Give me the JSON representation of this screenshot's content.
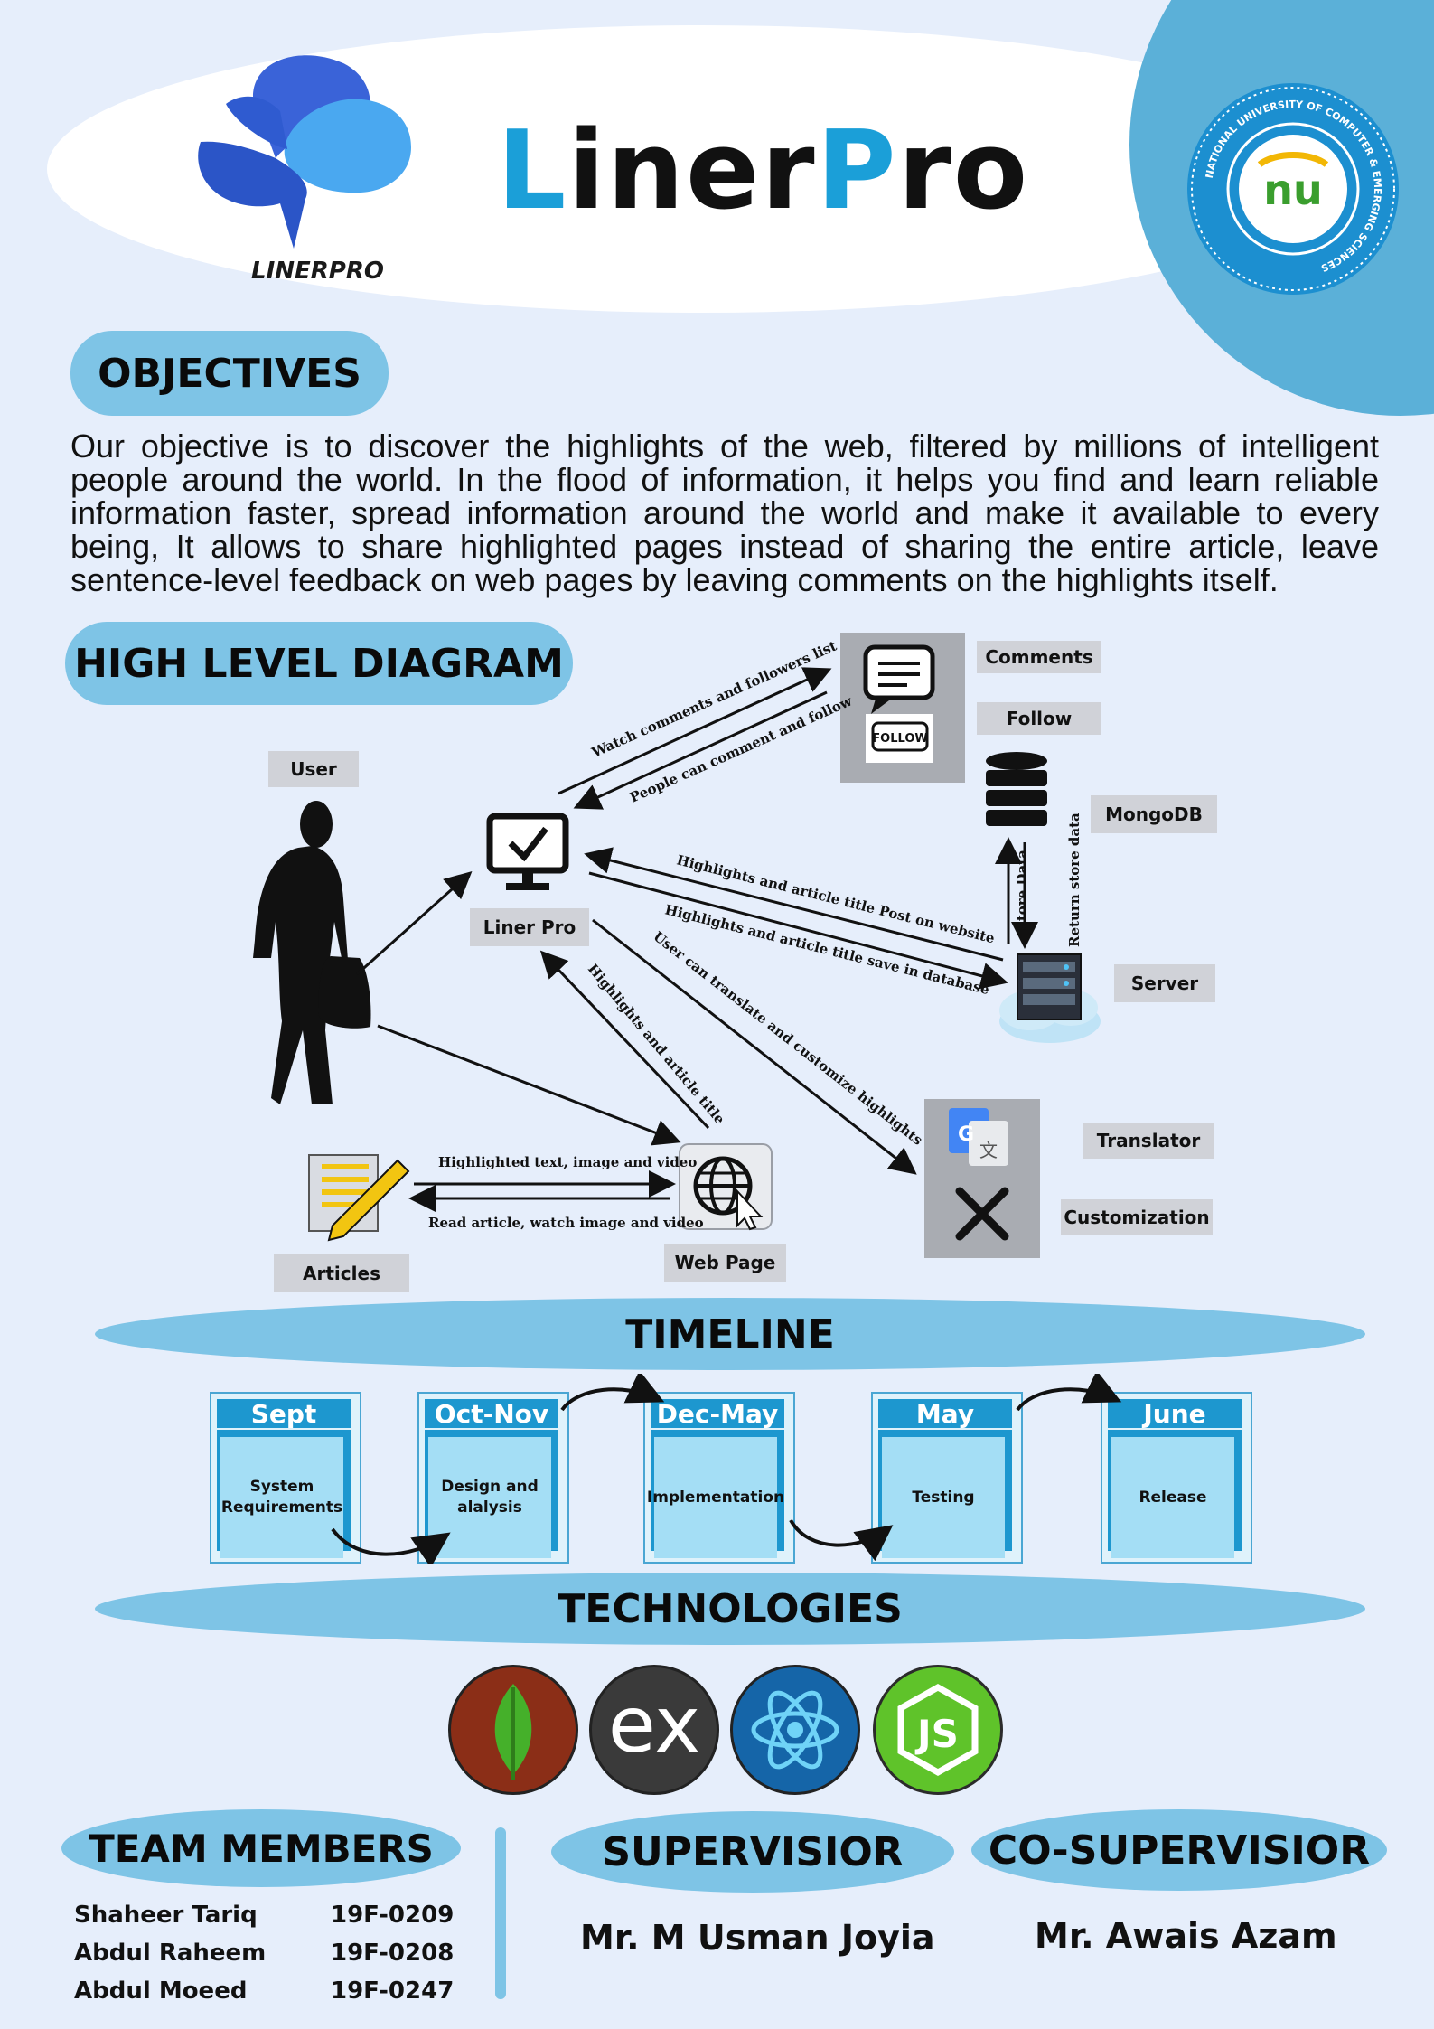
{
  "header": {
    "logo_caption": "LINERPRO",
    "title_part1": "L",
    "title_part2": "iner",
    "title_part3": "P",
    "title_part4": "ro",
    "seal_text": "NATIONAL UNIVERSITY OF COMPUTER & EMERGING SCIENCES",
    "seal_mark": "nu"
  },
  "objectives": {
    "heading": "OBJECTIVES",
    "text": "Our objective is to discover the highlights of the web, filtered by millions of intelligent people around the world. In the flood of information, it helps you find and learn reliable information faster, spread information around the world and make it available to every being, It allows to share highlighted pages instead of sharing the entire article, leave sentence-level feedback on web pages by leaving comments on the highlights itself."
  },
  "diagram": {
    "heading": "HIGH LEVEL DIAGRAM",
    "labels": {
      "user": "User",
      "liner_pro": "Liner Pro",
      "comments": "Comments",
      "follow": "Follow",
      "follow_badge": "FOLLOW",
      "mongodb": "MongoDB",
      "server": "Server",
      "translator": "Translator",
      "customization": "Customization",
      "articles": "Articles",
      "web_page": "Web Page"
    },
    "edges": {
      "watch_comments": "Watch comments and followers list",
      "people_comment": "People can comment and follow",
      "post_on_website": "Highlights and article title Post on website",
      "save_in_database": "Highlights and article title save in database",
      "translate_customize": "User can translate and customize highlights",
      "highlights_title": "Highlights and article title",
      "highlighted_text": "Highlighted text, image and video",
      "read_article": "Read article, watch image and video",
      "store_data": "Store Data",
      "return_store_data": "Return store data"
    }
  },
  "timeline": {
    "heading": "TIMELINE",
    "phases": [
      {
        "period": "Sept",
        "task": "System Requirements"
      },
      {
        "period": "Oct-Nov",
        "task": "Design and alalysis"
      },
      {
        "period": "Dec-May",
        "task": "Implementation"
      },
      {
        "period": "May",
        "task": "Testing"
      },
      {
        "period": "June",
        "task": "Release"
      }
    ]
  },
  "technologies": {
    "heading": "TECHNOLOGIES",
    "items": [
      {
        "name": "MongoDB",
        "icon": "mongodb-leaf-icon",
        "color": "#8b2e17"
      },
      {
        "name": "Express",
        "icon": "express-icon",
        "color": "#3a3a3a",
        "glyph": "ex"
      },
      {
        "name": "React",
        "icon": "react-atom-icon",
        "color": "#1565a8"
      },
      {
        "name": "Node.js",
        "icon": "nodejs-icon",
        "color": "#5fc32a"
      }
    ]
  },
  "team": {
    "heading": "TEAM MEMBERS",
    "members": [
      {
        "name": "Shaheer Tariq",
        "id": "19F-0209"
      },
      {
        "name": "Abdul Raheem",
        "id": "19F-0208"
      },
      {
        "name": "Abdul Moeed",
        "id": "19F-0247"
      }
    ]
  },
  "supervisor": {
    "heading": "SUPERVISIOR",
    "name": "Mr. M Usman Joyia"
  },
  "co_supervisor": {
    "heading": "CO-SUPERVISIOR",
    "name": "Mr. Awais Azam"
  },
  "colors": {
    "accent": "#1b9fd8",
    "pill": "#7ec4e6",
    "background": "#e6eefb"
  }
}
